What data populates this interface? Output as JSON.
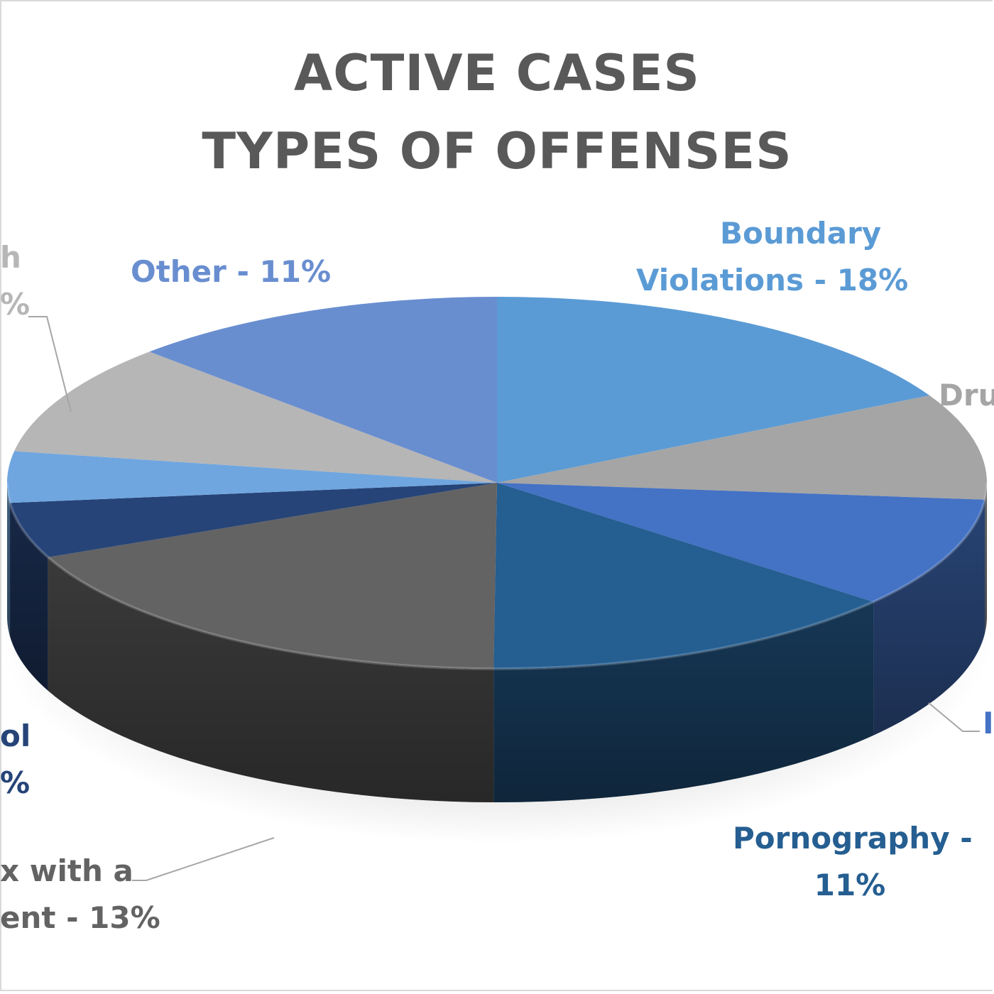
{
  "chart_data": {
    "type": "pie",
    "title_lines": [
      "ACTIVE CASES",
      "TYPES OF OFFENSES"
    ],
    "slices": [
      {
        "label_lines": [
          "Boundary",
          "Violations  - 18%"
        ],
        "value": 18,
        "color": "#5b9bd5"
      },
      {
        "label_lines": [
          "Dru"
        ],
        "value": null,
        "color": "#a5a5a5"
      },
      {
        "label_lines": [
          "I"
        ],
        "value": null,
        "color": "#4472c4"
      },
      {
        "label_lines": [
          "Pornography  -",
          "11%"
        ],
        "value": 11,
        "color": "#255e91"
      },
      {
        "label_lines": [
          "x with a",
          "ent - 13%"
        ],
        "value": 13,
        "color": "#636363"
      },
      {
        "label_lines": [
          "ol",
          "%"
        ],
        "value": null,
        "color": "#264478"
      },
      {
        "label_lines": [],
        "value": null,
        "color": "#70a6df"
      },
      {
        "label_lines": [
          "h",
          "%"
        ],
        "value": null,
        "color": "#b6b6b6"
      },
      {
        "label_lines": [
          "Other  - 11%"
        ],
        "value": 11,
        "color": "#698ed0"
      }
    ]
  }
}
